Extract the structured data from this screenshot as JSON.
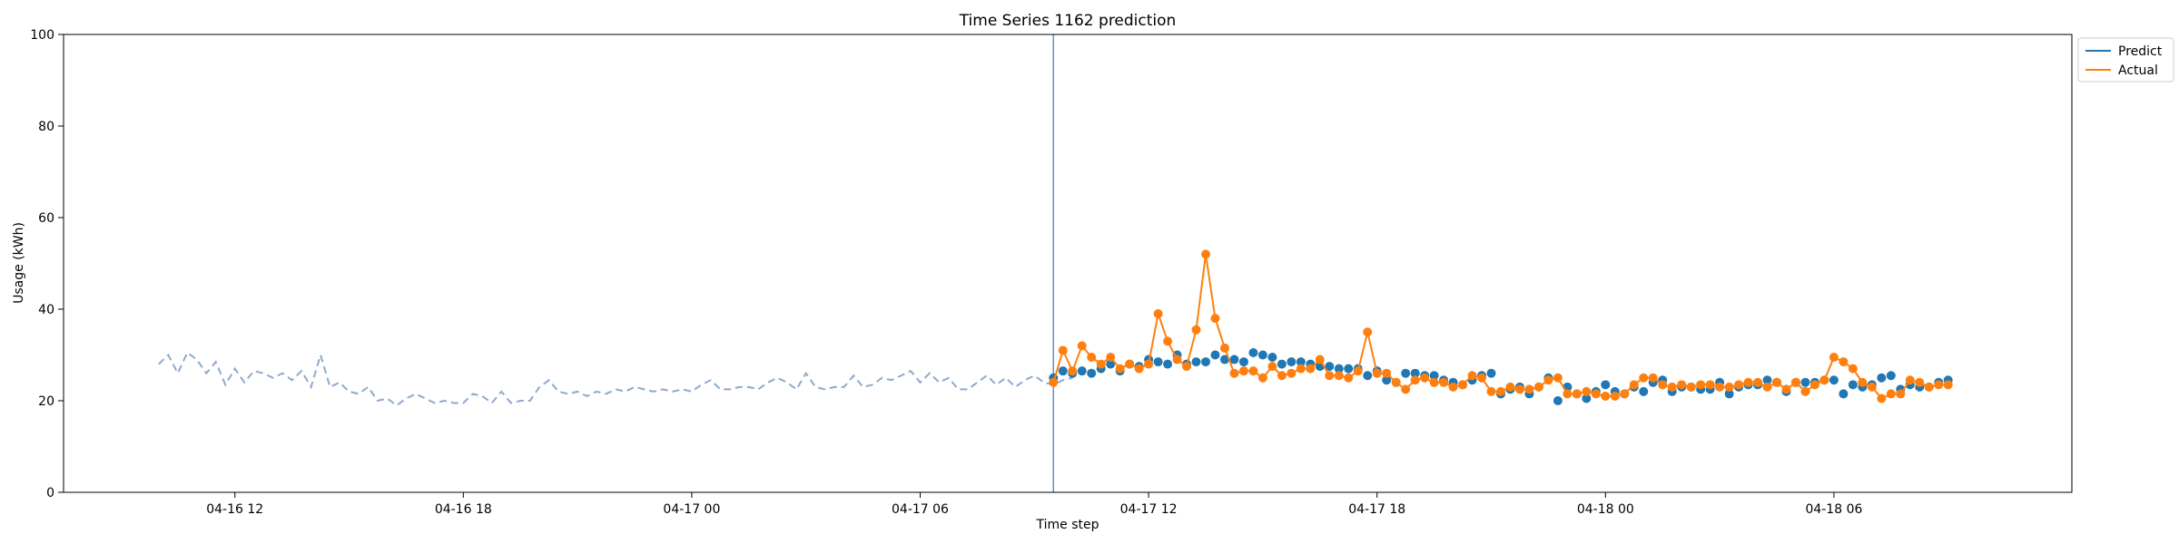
{
  "chart_data": {
    "type": "line",
    "title": "Time Series 1162 prediction",
    "xlabel": "Time step",
    "ylabel": "Usage (kWh)",
    "ylim": [
      0,
      100
    ],
    "yticks": [
      0,
      20,
      40,
      60,
      80,
      100
    ],
    "xlim": [
      "2024-04-16 07:30",
      "2024-04-18 12:15"
    ],
    "xticks": [
      {
        "t": "2024-04-16 12:00",
        "label": "04-16 12"
      },
      {
        "t": "2024-04-16 18:00",
        "label": "04-16 18"
      },
      {
        "t": "2024-04-17 00:00",
        "label": "04-17 00"
      },
      {
        "t": "2024-04-17 06:00",
        "label": "04-17 06"
      },
      {
        "t": "2024-04-17 12:00",
        "label": "04-17 12"
      },
      {
        "t": "2024-04-17 18:00",
        "label": "04-17 18"
      },
      {
        "t": "2024-04-18 00:00",
        "label": "04-18 00"
      },
      {
        "t": "2024-04-18 06:00",
        "label": "04-18 06"
      }
    ],
    "split_time": "2024-04-17 09:30",
    "history": {
      "start": "2024-04-16 10:00",
      "step_minutes": 15,
      "color": "#8ea9cf",
      "values": [
        28,
        30,
        26,
        30.5,
        29,
        26,
        28.5,
        23.5,
        27,
        24,
        26.5,
        26,
        25,
        26,
        24.5,
        26.5,
        23,
        30,
        23,
        24,
        22,
        21.5,
        23,
        20,
        20.5,
        19,
        20.5,
        21.5,
        20.5,
        19.5,
        20,
        19.5,
        19.5,
        21.5,
        21,
        19.5,
        22,
        19.5,
        20,
        20,
        23,
        24.5,
        22,
        21.5,
        22,
        21,
        22,
        21.5,
        22.5,
        22,
        23,
        22.5,
        22,
        22.5,
        22,
        22.5,
        22,
        23.5,
        24.5,
        22.5,
        22.5,
        23,
        23,
        22.5,
        24,
        25,
        24,
        22.5,
        26,
        23,
        22.5,
        23,
        23,
        25.5,
        23,
        23.5,
        25,
        24.5,
        25.5,
        26.5,
        24,
        26,
        24,
        25,
        22.5,
        22.5,
        24,
        25.5,
        23.5,
        25,
        23,
        24.5,
        25.5,
        24,
        23.5,
        24.5,
        25
      ]
    },
    "series": [
      {
        "name": "Predict",
        "color": "#1f77b4",
        "line": false,
        "start": "2024-04-17 09:30",
        "step_minutes": 15,
        "values": [
          25,
          26.5,
          26,
          26.5,
          26,
          27,
          28,
          26.5,
          28,
          27.5,
          29,
          28.5,
          28,
          30,
          28,
          28.5,
          28.5,
          30,
          29,
          29,
          28.5,
          30.5,
          30,
          29.5,
          28,
          28.5,
          28.5,
          28,
          27.5,
          27.5,
          27,
          27,
          27,
          25.5,
          26.5,
          24.5,
          24,
          26,
          26,
          25.5,
          25.5,
          24.5,
          24,
          23.5,
          24.5,
          25.5,
          26,
          21.5,
          22.5,
          23,
          21.5,
          23,
          25,
          20,
          23,
          21.5,
          20.5,
          22,
          23.5,
          22,
          21.5,
          23,
          22,
          24,
          24.5,
          22,
          23,
          23,
          22.5,
          22.5,
          24,
          21.5,
          23,
          23.5,
          23.5,
          24.5,
          24,
          22,
          24,
          24,
          24,
          24.5,
          24.5,
          21.5,
          23.5,
          23,
          23.5,
          25,
          25.5,
          22.5,
          23.5,
          23,
          23,
          24,
          24.5
        ]
      },
      {
        "name": "Actual",
        "color": "#ff7f0e",
        "line": true,
        "start": "2024-04-17 09:30",
        "step_minutes": 15,
        "values": [
          24,
          31,
          26.5,
          32,
          29.5,
          28,
          29.5,
          27,
          28,
          27,
          28,
          39,
          33,
          29,
          27.5,
          35.5,
          52,
          38,
          31.5,
          26,
          26.5,
          26.5,
          25,
          27.5,
          25.5,
          26,
          27,
          27,
          29,
          25.5,
          25.5,
          25,
          26.5,
          35,
          26,
          26,
          24,
          22.5,
          24.5,
          25,
          24,
          24,
          23,
          23.5,
          25.5,
          25,
          22,
          22,
          23,
          22.5,
          22.5,
          23,
          24.5,
          25,
          21.5,
          21.5,
          22,
          21.5,
          21,
          21,
          21.5,
          23.5,
          25,
          25,
          23.5,
          23,
          23.5,
          23,
          23.5,
          23.5,
          23,
          23,
          23.5,
          24,
          24,
          23,
          24,
          22.5,
          24,
          22,
          23.5,
          24.5,
          29.5,
          28.5,
          27,
          24,
          23,
          20.5,
          21.5,
          21.5,
          24.5,
          24,
          23,
          23.5,
          23.5
        ]
      }
    ],
    "legend": {
      "placement": "upper-right-outside",
      "entries": [
        "Predict",
        "Actual"
      ]
    },
    "grid": false
  }
}
